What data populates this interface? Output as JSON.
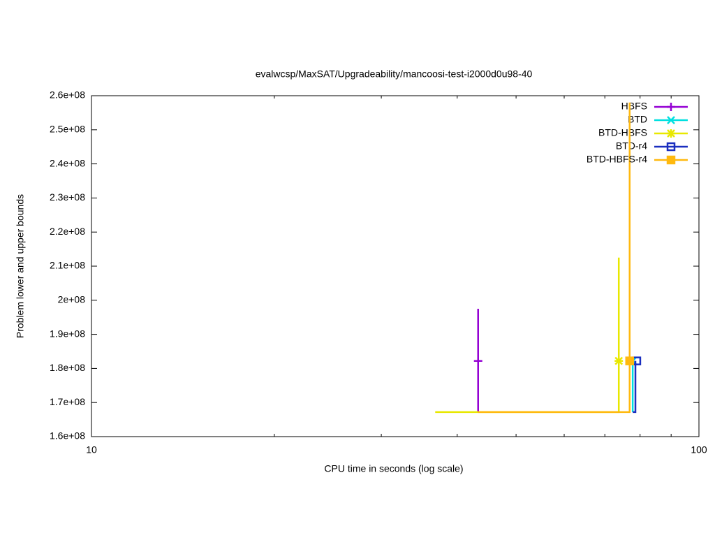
{
  "chart_data": {
    "type": "line",
    "title": "evalwcsp/MaxSAT/Upgradeability/mancoosi-test-i2000d0u98-40",
    "x_label": "CPU time in seconds (log scale)",
    "y_label": "Problem lower and upper bounds",
    "log_x": true,
    "legend": "top-right",
    "xlim": [
      10,
      100
    ],
    "xticks": [
      10,
      100
    ],
    "xminor_ticks": [
      20,
      30,
      40,
      50,
      60,
      70,
      80,
      90
    ],
    "ylim": [
      160000000,
      260000000
    ],
    "yticks": [
      {
        "value": 160000000,
        "label": "1.6e+08"
      },
      {
        "value": 170000000,
        "label": "1.7e+08"
      },
      {
        "value": 180000000,
        "label": "1.8e+08"
      },
      {
        "value": 190000000,
        "label": "1.9e+08"
      },
      {
        "value": 200000000,
        "label": "2e+08"
      },
      {
        "value": 210000000,
        "label": "2.1e+08"
      },
      {
        "value": 220000000,
        "label": "2.2e+08"
      },
      {
        "value": 230000000,
        "label": "2.3e+08"
      },
      {
        "value": 240000000,
        "label": "2.4e+08"
      },
      {
        "value": 250000000,
        "label": "2.5e+08"
      },
      {
        "value": 260000000,
        "label": "2.6e+08"
      }
    ],
    "series": [
      {
        "name": "HBFS",
        "color": "#9400d3",
        "marker": "plus",
        "x": [
          43.3,
          43.3
        ],
        "values": [
          167200000,
          197500000
        ],
        "point_x": 43.3,
        "point_y": 182200000
      },
      {
        "name": "BTD",
        "color": "#00e0e0",
        "marker": "cross",
        "x": [
          77.8,
          77.8
        ],
        "values": [
          167200000,
          182200000
        ],
        "point_x": 77.8,
        "point_y": 182200000
      },
      {
        "name": "BTD-HBFS",
        "color": "#e8e800",
        "marker": "star",
        "x": [
          36.8,
          73.8,
          73.8
        ],
        "values": [
          167200000,
          167200000,
          212500000
        ],
        "point_x": 73.8,
        "point_y": 182200000
      },
      {
        "name": "BTD-r4",
        "color": "#1a2ebf",
        "marker": "square",
        "x": [
          77.8,
          78.6,
          78.6
        ],
        "values": [
          167200000,
          167200000,
          182200000
        ],
        "point_x": 79.0,
        "point_y": 182200000
      },
      {
        "name": "BTD-HBFS-r4",
        "color": "#ffb90f",
        "marker": "filled-square",
        "x": [
          43.3,
          76.9,
          76.9
        ],
        "values": [
          167200000,
          167200000,
          258000000
        ],
        "point_x": 76.9,
        "point_y": 182200000
      }
    ]
  }
}
